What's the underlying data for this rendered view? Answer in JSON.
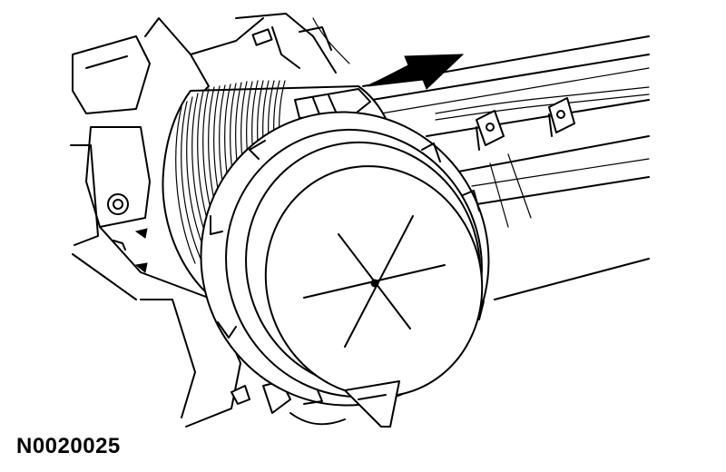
{
  "figure": {
    "id_label": "N0020025",
    "subject_icon": "air-filter-housing-cover",
    "pointer_icon": "direction-arrow"
  },
  "colors": {
    "line": "#000000",
    "background": "#ffffff"
  }
}
